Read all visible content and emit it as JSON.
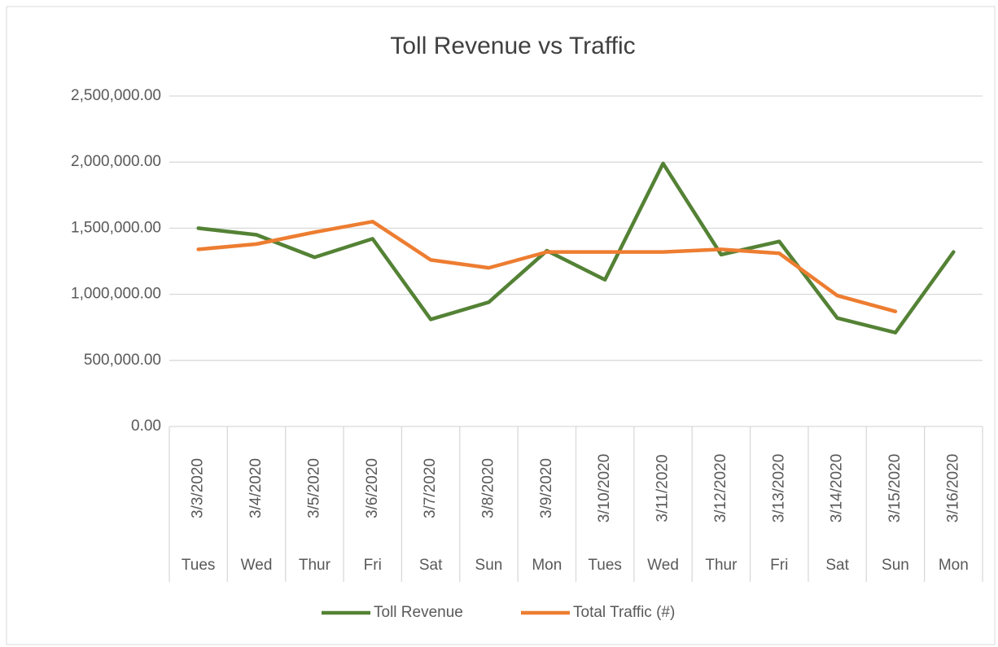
{
  "chart_data": {
    "type": "line",
    "title": "Toll Revenue vs Traffic",
    "categories": [
      "3/3/2020",
      "3/4/2020",
      "3/5/2020",
      "3/6/2020",
      "3/7/2020",
      "3/8/2020",
      "3/9/2020",
      "3/10/2020",
      "3/11/2020",
      "3/12/2020",
      "3/13/2020",
      "3/14/2020",
      "3/15/2020",
      "3/16/2020"
    ],
    "category_groups": [
      "Tues",
      "Wed",
      "Thur",
      "Fri",
      "Sat",
      "Sun",
      "Mon",
      "Tues",
      "Wed",
      "Thur",
      "Fri",
      "Sat",
      "Sun",
      "Mon"
    ],
    "series": [
      {
        "name": "Toll Revenue",
        "color": "#548235",
        "values": [
          1500000,
          1450000,
          1280000,
          1420000,
          810000,
          940000,
          1330000,
          1110000,
          1990000,
          1300000,
          1400000,
          820000,
          710000,
          1320000
        ]
      },
      {
        "name": "Total Traffic (#)",
        "color": "#ed7d31",
        "values": [
          1340000,
          1380000,
          1470000,
          1550000,
          1260000,
          1200000,
          1320000,
          1320000,
          1320000,
          1340000,
          1310000,
          990000,
          870000,
          null
        ]
      }
    ],
    "ylim": [
      0,
      2500000
    ],
    "yticks": [
      {
        "value": 0,
        "label": "0.00"
      },
      {
        "value": 500000,
        "label": "500,000.00"
      },
      {
        "value": 1000000,
        "label": "1,000,000.00"
      },
      {
        "value": 1500000,
        "label": "1,500,000.00"
      },
      {
        "value": 2000000,
        "label": "2,000,000.00"
      },
      {
        "value": 2500000,
        "label": "2,500,000.00"
      }
    ],
    "grid": true,
    "legend": "bottom"
  }
}
